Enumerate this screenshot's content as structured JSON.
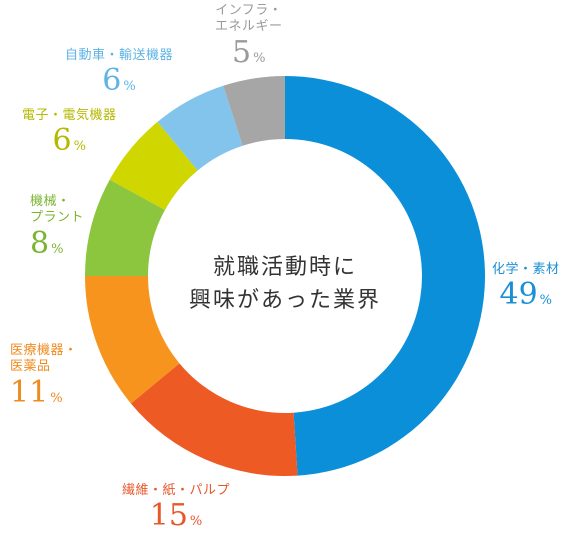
{
  "chart_data": {
    "type": "pie",
    "donut": true,
    "title_lines": [
      "就職活動時に",
      "興味があった業界"
    ],
    "unit": "%",
    "slices": [
      {
        "label_lines": [
          "化学・素材"
        ],
        "value": 49,
        "color": "#0b8fd8"
      },
      {
        "label_lines": [
          "繊維・紙・パルプ"
        ],
        "value": 15,
        "color": "#ee5a24"
      },
      {
        "label_lines": [
          "医療機器・",
          "医薬品"
        ],
        "value": 11,
        "color": "#f7941d"
      },
      {
        "label_lines": [
          "機械・",
          "プラント"
        ],
        "value": 8,
        "color": "#8cc63f"
      },
      {
        "label_lines": [
          "電子・電気機器"
        ],
        "value": 6,
        "color": "#cfd600"
      },
      {
        "label_lines": [
          "自動車・輸送機器"
        ],
        "value": 6,
        "color": "#82c4ec"
      },
      {
        "label_lines": [
          "インフラ・",
          "エネルギー"
        ],
        "value": 5,
        "color": "#a6a6a6"
      }
    ],
    "label_colors": [
      "#1a8fd6",
      "#e8562a",
      "#ef8a1e",
      "#7ab531",
      "#b5b800",
      "#5fb4e6",
      "#9a9a9a"
    ]
  }
}
